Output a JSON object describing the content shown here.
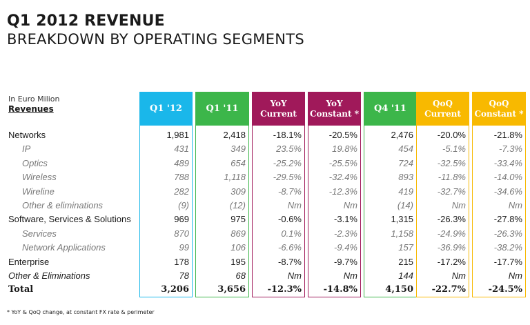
{
  "title": "Q1 2012 REVENUE",
  "subtitle": "BREAKDOWN BY OPERATING SEGMENTS",
  "unit_label": "In Euro Milion",
  "revenues_label": "Revenues",
  "colors": {
    "q1_12": "#1ab7ea",
    "q1_11": "#3cb64a",
    "yoy": "#a0195a",
    "q4_11": "#3cb64a",
    "qoq": "#f8b900"
  },
  "columns": [
    {
      "id": "q1_12",
      "lines": [
        "Q1 '12"
      ]
    },
    {
      "id": "q1_11",
      "lines": [
        "Q1 '11"
      ]
    },
    {
      "id": "yoy_current",
      "lines": [
        "YoY",
        "Current"
      ]
    },
    {
      "id": "yoy_constant",
      "lines": [
        "YoY",
        "Constant *"
      ]
    },
    {
      "id": "q4_11",
      "lines": [
        "Q4 '11"
      ]
    },
    {
      "id": "qoq_current",
      "lines": [
        "QoQ",
        "Current"
      ]
    },
    {
      "id": "qoq_constant",
      "lines": [
        "QoQ",
        "Constant *"
      ]
    }
  ],
  "rows": [
    {
      "label": "Networks",
      "style": "main",
      "values": [
        "1,981",
        "2,418",
        "-18.1%",
        "-20.5%",
        "2,476",
        "-20.0%",
        "-21.8%"
      ]
    },
    {
      "label": "IP",
      "style": "sub",
      "values": [
        "431",
        "349",
        "23.5%",
        "19.8%",
        "454",
        "-5.1%",
        "-7.3%"
      ]
    },
    {
      "label": "Optics",
      "style": "sub",
      "values": [
        "489",
        "654",
        "-25.2%",
        "-25.5%",
        "724",
        "-32.5%",
        "-33.4%"
      ]
    },
    {
      "label": "Wireless",
      "style": "sub",
      "values": [
        "788",
        "1,118",
        "-29.5%",
        "-32.4%",
        "893",
        "-11.8%",
        "-14.0%"
      ]
    },
    {
      "label": "Wireline",
      "style": "sub",
      "values": [
        "282",
        "309",
        "-8.7%",
        "-12.3%",
        "419",
        "-32.7%",
        "-34.6%"
      ]
    },
    {
      "label": "Other & eliminations",
      "style": "sub",
      "values": [
        "(9)",
        "(12)",
        "Nm",
        "Nm",
        "(14)",
        "Nm",
        "Nm"
      ]
    },
    {
      "label": "Software, Services & Solutions",
      "style": "main",
      "values": [
        "969",
        "975",
        "-0.6%",
        "-3.1%",
        "1,315",
        "-26.3%",
        "-27.8%"
      ]
    },
    {
      "label": "Services",
      "style": "sub",
      "values": [
        "870",
        "869",
        "0.1%",
        "-2.3%",
        "1,158",
        "-24.9%",
        "-26.3%"
      ]
    },
    {
      "label": "Network Applications",
      "style": "sub",
      "values": [
        "99",
        "106",
        "-6.6%",
        "-9.4%",
        "157",
        "-36.9%",
        "-38.2%"
      ]
    },
    {
      "label": "Enterprise",
      "style": "main",
      "values": [
        "178",
        "195",
        "-8.7%",
        "-9.7%",
        "215",
        "-17.2%",
        "-17.7%"
      ]
    },
    {
      "label": "Other & Eliminations",
      "style": "alt",
      "values": [
        "78",
        "68",
        "Nm",
        "Nm",
        "144",
        "Nm",
        "Nm"
      ]
    },
    {
      "label": "Total",
      "style": "total",
      "values": [
        "3,206",
        "3,656",
        "-12.3%",
        "-14.8%",
        "4,150",
        "-22.7%",
        "-24.5%"
      ]
    }
  ],
  "footnote": "* YoY & QoQ  change, at constant FX rate & perimeter"
}
